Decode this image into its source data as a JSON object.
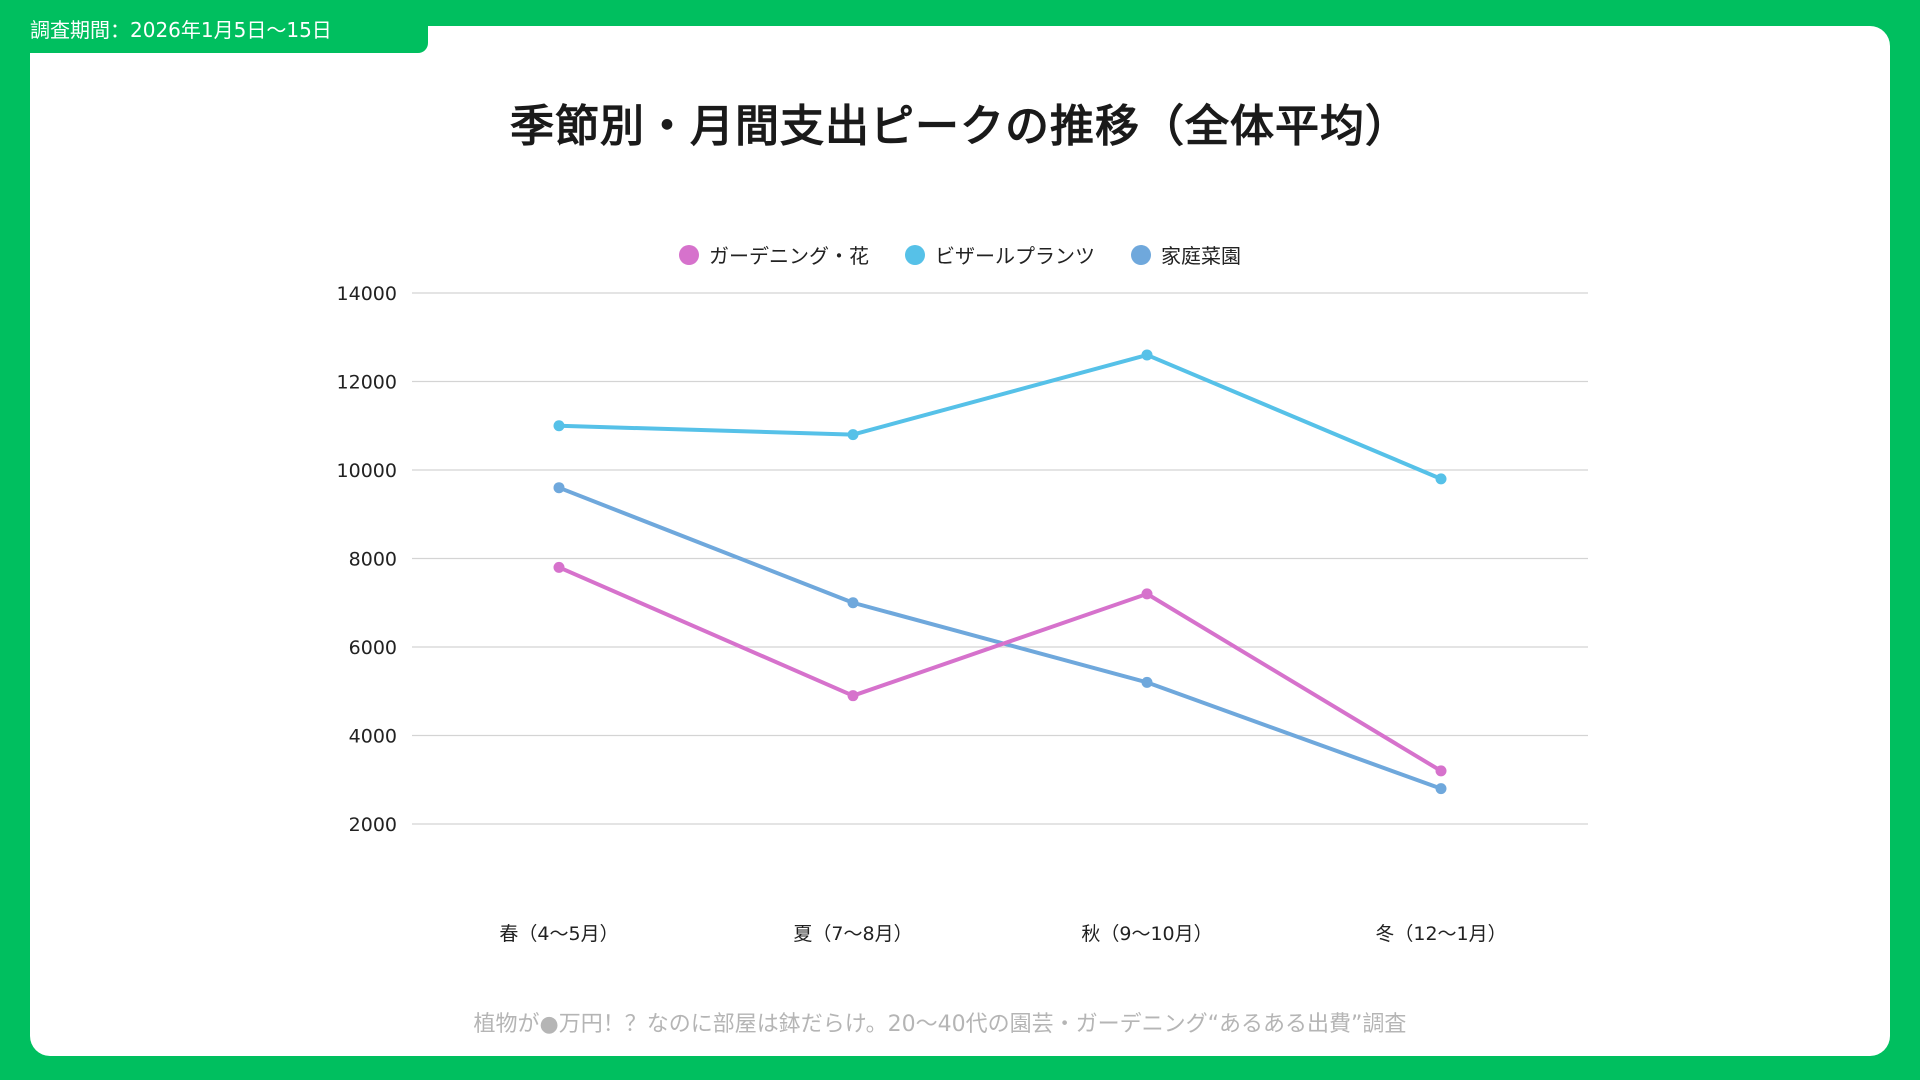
{
  "header": {
    "survey_period": "調査期間：2026年1月5日〜15日"
  },
  "title": "季節別・月間支出ピークの推移（全体平均）",
  "footer": "植物が●万円！？なのに部屋は鉢だらけ。20〜40代の園芸・ガーデニング“あるある出費”調査",
  "colors": {
    "frame": "#00BF5F"
  },
  "chart_data": {
    "type": "line",
    "title": "季節別・月間支出ピークの推移（全体平均）",
    "categories": [
      "春（4〜5月）",
      "夏（7〜8月）",
      "秋（9〜10月）",
      "冬（12〜1月）"
    ],
    "series": [
      {
        "name": "ガーデニング・花",
        "color": "#D672CC",
        "values": [
          7800,
          4900,
          7200,
          3200
        ]
      },
      {
        "name": "ビザールプランツ",
        "color": "#56C1E8",
        "values": [
          11000,
          10800,
          12600,
          9800
        ]
      },
      {
        "name": "家庭菜園",
        "color": "#6FA8DC",
        "values": [
          9600,
          7000,
          5200,
          2800
        ]
      }
    ],
    "yticks": [
      2000,
      4000,
      6000,
      8000,
      10000,
      12000,
      14000
    ],
    "ylim": [
      0,
      14000
    ],
    "grid": true,
    "legend": "top-center",
    "xlabel": "",
    "ylabel": ""
  }
}
